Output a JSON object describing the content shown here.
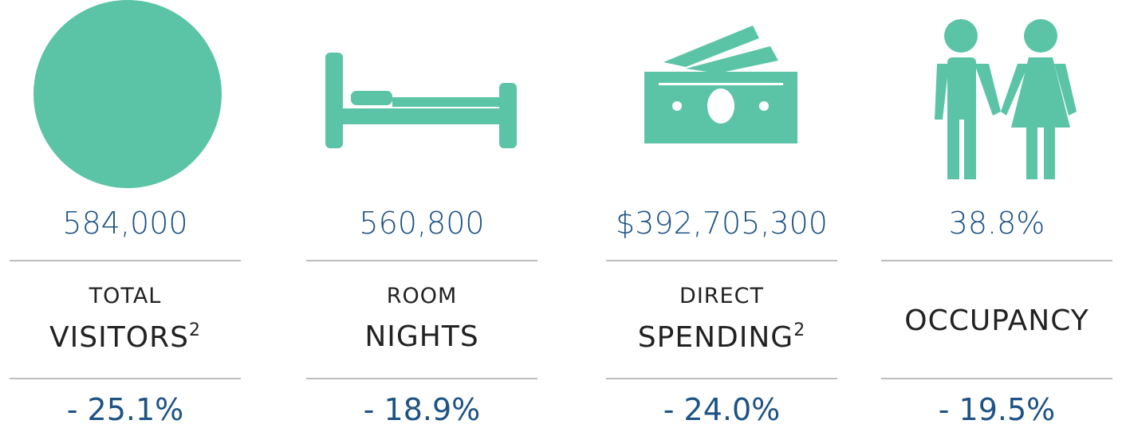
{
  "stats": [
    {
      "value": "584,000",
      "label_top": "TOTAL",
      "label_main": "VISITORS",
      "footnote": "2",
      "change": "- 25.1%"
    },
    {
      "value": "560,800",
      "label_top": "ROOM",
      "label_main": "NIGHTS",
      "change": "- 18.9%"
    },
    {
      "value": "$392,705,300",
      "label_top": "DIRECT",
      "label_main": "SPENDING",
      "footnote": "2",
      "change": "- 24.0%"
    },
    {
      "value": "38.8%",
      "label_main": "OCCUPANCY",
      "change": "- 19.5%"
    }
  ]
}
